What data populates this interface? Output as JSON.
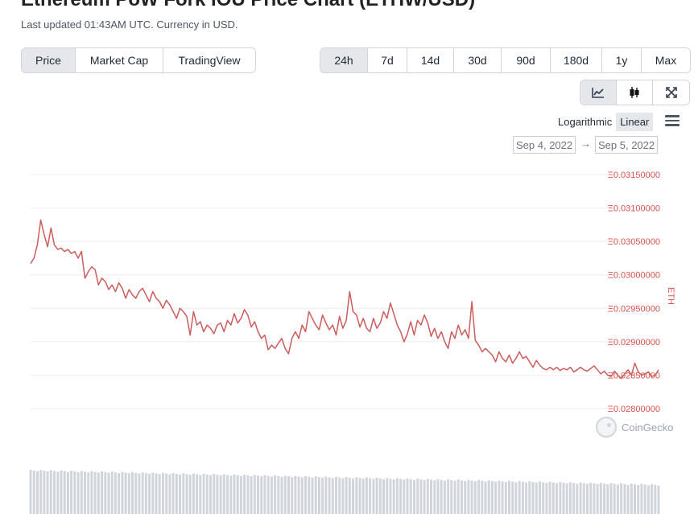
{
  "header": {
    "title": "Ethereum PoW Fork IOU Price Chart (ETHW/USD)",
    "subtitle": "Last updated 01:43AM UTC. Currency in USD."
  },
  "metric_tabs": [
    {
      "label": "Price",
      "active": true
    },
    {
      "label": "Market Cap",
      "active": false
    },
    {
      "label": "TradingView",
      "active": false
    }
  ],
  "range_tabs": [
    {
      "label": "24h",
      "active": true
    },
    {
      "label": "7d",
      "active": false
    },
    {
      "label": "14d",
      "active": false
    },
    {
      "label": "30d",
      "active": false
    },
    {
      "label": "90d",
      "active": false
    },
    {
      "label": "180d",
      "active": false
    },
    {
      "label": "1y",
      "active": false
    },
    {
      "label": "Max",
      "active": false
    }
  ],
  "view_tools": [
    {
      "icon": "line-chart-icon",
      "active": true
    },
    {
      "icon": "candlestick-icon",
      "active": false
    },
    {
      "icon": "expand-icon",
      "active": false
    }
  ],
  "scale": {
    "log_label": "Logarithmic",
    "linear_label": "Linear",
    "active": "linear"
  },
  "date_range": {
    "from": "Sep 4, 2022",
    "to": "Sep 5, 2022",
    "arrow": "→"
  },
  "watermark": "CoinGecko",
  "chart_data": {
    "type": "line",
    "ylabel": "ETH",
    "ylim": [
      0.0278,
      0.0316
    ],
    "y_ticks": [
      "Ξ0.03150000",
      "Ξ0.03100000",
      "Ξ0.03050000",
      "Ξ0.03000000",
      "Ξ0.02950000",
      "Ξ0.02900000",
      "Ξ0.02850000",
      "Ξ0.02800000"
    ],
    "y_tick_values": [
      0.0315,
      0.031,
      0.0305,
      0.03,
      0.0295,
      0.029,
      0.0285,
      0.028
    ],
    "grid": true,
    "colors": {
      "line": "#cd5c5c",
      "axis_label": "#d9534f",
      "volume": "#d1d5db"
    },
    "series": [
      {
        "values": [
          0.03017,
          0.03025,
          0.03045,
          0.03082,
          0.0306,
          0.03042,
          0.0307,
          0.03045,
          0.03038,
          0.0304,
          0.03035,
          0.03038,
          0.03032,
          0.03035,
          0.03025,
          0.03035,
          0.02995,
          0.03005,
          0.03012,
          0.03008,
          0.02985,
          0.02995,
          0.0299,
          0.02978,
          0.02985,
          0.02975,
          0.02988,
          0.0298,
          0.02965,
          0.02978,
          0.0297,
          0.02965,
          0.02975,
          0.0298,
          0.0297,
          0.0296,
          0.02975,
          0.02965,
          0.0296,
          0.0295,
          0.02962,
          0.02955,
          0.02945,
          0.02935,
          0.0295,
          0.02945,
          0.02938,
          0.0291,
          0.02945,
          0.02925,
          0.0293,
          0.02915,
          0.02925,
          0.0292,
          0.02912,
          0.02925,
          0.02928,
          0.02915,
          0.02932,
          0.02925,
          0.02942,
          0.02928,
          0.02935,
          0.02948,
          0.0294,
          0.02922,
          0.0293,
          0.02915,
          0.02905,
          0.0291,
          0.02888,
          0.02895,
          0.0289,
          0.02898,
          0.02905,
          0.0289,
          0.02882,
          0.02905,
          0.02915,
          0.02905,
          0.02925,
          0.02915,
          0.02945,
          0.02935,
          0.02925,
          0.02918,
          0.0294,
          0.02928,
          0.02918,
          0.02925,
          0.0291,
          0.02938,
          0.0292,
          0.02932,
          0.02975,
          0.02945,
          0.0294,
          0.02922,
          0.02935,
          0.0292,
          0.02915,
          0.02935,
          0.0292,
          0.02928,
          0.02945,
          0.02935,
          0.02958,
          0.02942,
          0.02925,
          0.02915,
          0.029,
          0.02912,
          0.0293,
          0.0291,
          0.02932,
          0.02925,
          0.0294,
          0.02928,
          0.02908,
          0.0292,
          0.02905,
          0.02915,
          0.029,
          0.0289,
          0.02915,
          0.02905,
          0.02925,
          0.0291,
          0.02918,
          0.02905,
          0.0296,
          0.02902,
          0.02895,
          0.02885,
          0.0289,
          0.02885,
          0.0288,
          0.0287,
          0.02885,
          0.02875,
          0.0287,
          0.0288,
          0.02868,
          0.02875,
          0.02885,
          0.02875,
          0.02878,
          0.0287,
          0.02862,
          0.02872,
          0.02865,
          0.0286,
          0.02858,
          0.02862,
          0.02858,
          0.02862,
          0.02857,
          0.0286,
          0.02858,
          0.02862,
          0.02855,
          0.02858,
          0.02862,
          0.02858,
          0.02856,
          0.0286,
          0.02864,
          0.02858,
          0.02852,
          0.02856,
          0.0285,
          0.02848,
          0.02856,
          0.0285,
          0.02845,
          0.02852,
          0.02858,
          0.0285,
          0.02868,
          0.02855,
          0.0285,
          0.02852,
          0.02855,
          0.02848,
          0.0285,
          0.02858
        ]
      }
    ]
  }
}
